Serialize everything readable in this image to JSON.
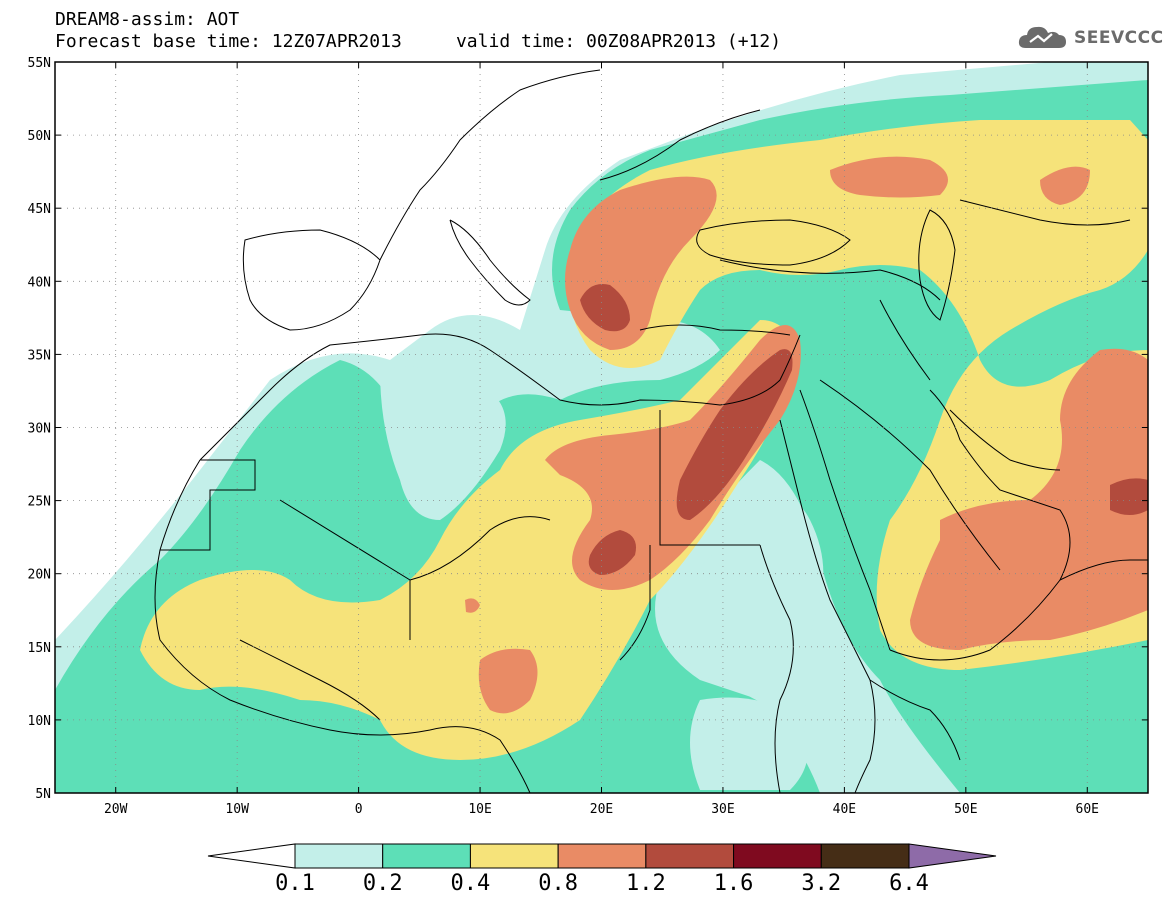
{
  "header": {
    "title_line1": "DREAM8-assim: AOT",
    "title_line2": "Forecast base time: 12Z07APR2013     valid time: 00Z08APR2013 (+12)"
  },
  "brand": {
    "name": "SEEVCCC",
    "icon": "cloud-logo-icon"
  },
  "map": {
    "lat_ticks": [
      {
        "value": 55,
        "label": "55N"
      },
      {
        "value": 50,
        "label": "50N"
      },
      {
        "value": 45,
        "label": "45N"
      },
      {
        "value": 40,
        "label": "40N"
      },
      {
        "value": 35,
        "label": "35N"
      },
      {
        "value": 30,
        "label": "30N"
      },
      {
        "value": 25,
        "label": "25N"
      },
      {
        "value": 20,
        "label": "20N"
      },
      {
        "value": 15,
        "label": "15N"
      },
      {
        "value": 10,
        "label": "10N"
      },
      {
        "value": 5,
        "label": "5N"
      }
    ],
    "lon_ticks": [
      {
        "value": -20,
        "label": "20W"
      },
      {
        "value": -10,
        "label": "10W"
      },
      {
        "value": 0,
        "label": "0"
      },
      {
        "value": 10,
        "label": "10E"
      },
      {
        "value": 20,
        "label": "20E"
      },
      {
        "value": 30,
        "label": "30E"
      },
      {
        "value": 40,
        "label": "40E"
      },
      {
        "value": 50,
        "label": "50E"
      },
      {
        "value": 60,
        "label": "60E"
      }
    ],
    "lon_range": [
      -25,
      65
    ],
    "lat_range": [
      5,
      55
    ]
  },
  "colorbar": {
    "labels": [
      "0.1",
      "0.2",
      "0.4",
      "0.8",
      "1.2",
      "1.6",
      "3.2",
      "6.4"
    ],
    "colors": [
      "#ffffff",
      "#c3efe9",
      "#5ddfb7",
      "#f6e37a",
      "#e98b65",
      "#b24b3d",
      "#7f0a1f",
      "#452d16",
      "#8e6ba8"
    ]
  }
}
